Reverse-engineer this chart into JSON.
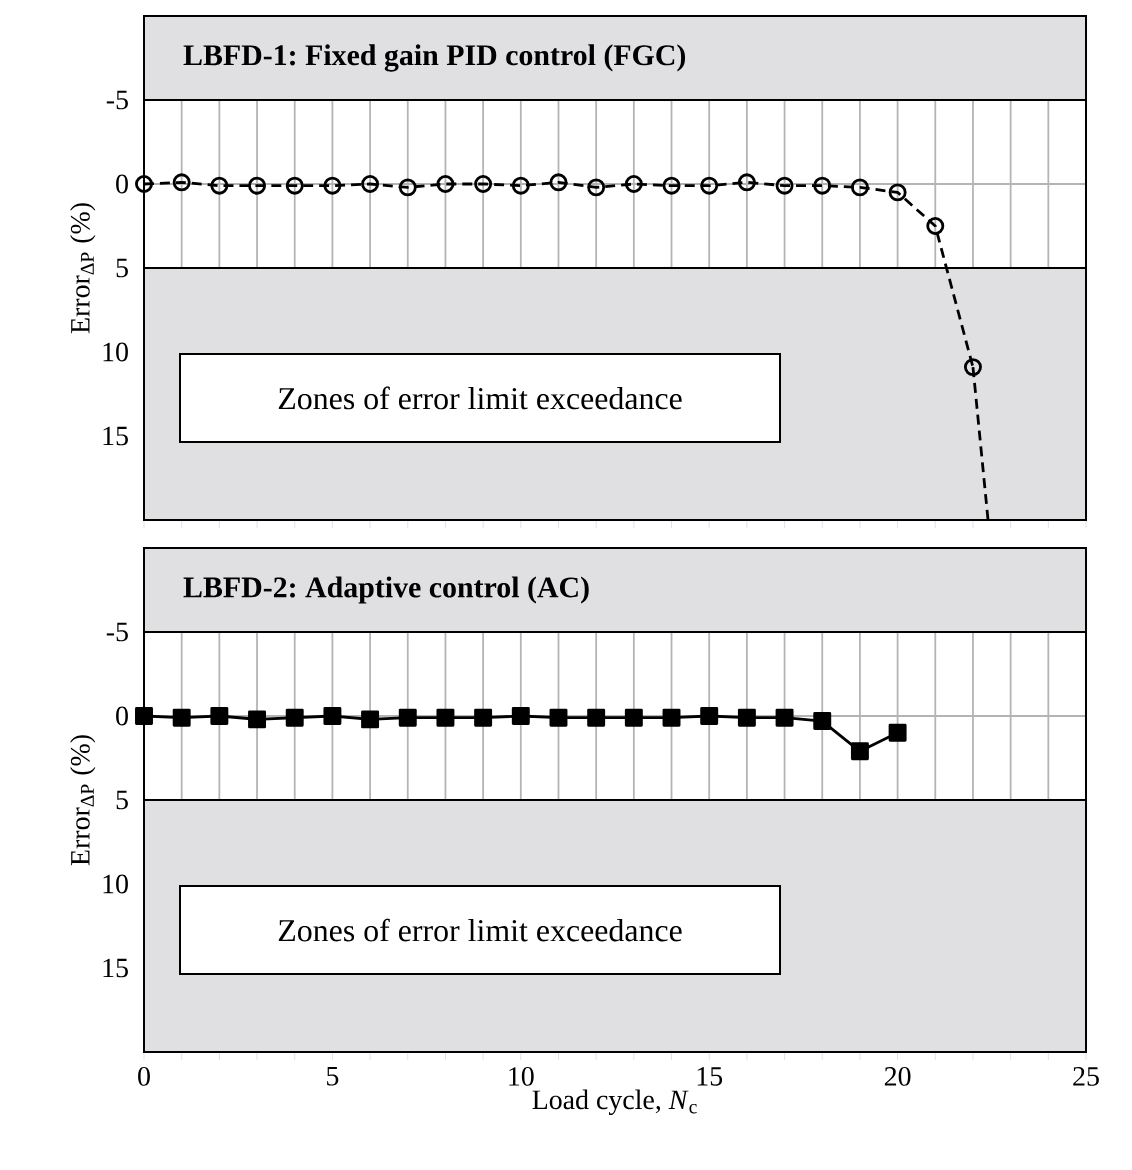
{
  "chart_data": [
    {
      "type": "line",
      "title": "LBFD-1: Fixed gain PID control (FGC)",
      "ylabel": "Error$_{ΔP}$ (%)",
      "x": [
        0,
        1,
        2,
        3,
        4,
        5,
        6,
        7,
        8,
        9,
        10,
        11,
        12,
        13,
        14,
        15,
        16,
        17,
        18,
        19,
        20,
        21,
        22
      ],
      "series": [
        {
          "color": "#000000",
          "marker": "circle",
          "line_style": "dashed",
          "values": [
            0,
            -0.1,
            0.1,
            0.1,
            0.1,
            0.1,
            0,
            0.2,
            0,
            0,
            0.1,
            -0.1,
            0.2,
            0,
            0.1,
            0.1,
            -0.1,
            0.1,
            0.1,
            0.2,
            0.5,
            2.5,
            10.9
          ]
        },
        {
          "color": "#000000",
          "marker": "none",
          "line_style": "dashed",
          "x": [
            22,
            22.4
          ],
          "values": [
            10.9,
            20
          ]
        }
      ],
      "xlim": [
        0,
        25
      ],
      "xticks": [
        0,
        {
          "value": 1,
          "label": null
        },
        {
          "value": 2,
          "label": null
        },
        {
          "value": 3,
          "label": null
        },
        {
          "value": 4,
          "label": null
        },
        5,
        {
          "value": 6,
          "label": null
        },
        {
          "value": 7,
          "label": null
        },
        {
          "value": 8,
          "label": null
        },
        {
          "value": 9,
          "label": null
        },
        10,
        {
          "value": 11,
          "label": null
        },
        {
          "value": 12,
          "label": null
        },
        {
          "value": 13,
          "label": null
        },
        {
          "value": 14,
          "label": null
        },
        15,
        {
          "value": 16,
          "label": null
        },
        {
          "value": 17,
          "label": null
        },
        {
          "value": 18,
          "label": null
        },
        {
          "value": 19,
          "label": null
        },
        20,
        {
          "value": 21,
          "label": null
        },
        {
          "value": 22,
          "label": null
        },
        {
          "value": 23,
          "label": null
        },
        {
          "value": 24,
          "label": null
        },
        25
      ],
      "ylim": [
        20,
        -10
      ],
      "yticks": [
        -5,
        0,
        5,
        10,
        15
      ],
      "grid": true,
      "tick_labels": "y",
      "bands": [
        {
          "axis": "y",
          "from": -10,
          "to": -5,
          "color": "#e0e0e2"
        },
        {
          "axis": "y",
          "from": 5,
          "to": 20,
          "color": "#e0e0e2",
          "label": "Zones of error limit exceedance"
        }
      ]
    },
    {
      "type": "line",
      "title": "LBFD-2: Adaptive control (AC)",
      "ylabel": "Error$_{ΔP}$ (%)",
      "xlabel": "Load cycle, *N*$_{c}$",
      "x": [
        0,
        1,
        2,
        3,
        4,
        5,
        6,
        7,
        8,
        9,
        10,
        11,
        12,
        13,
        14,
        15,
        16,
        17,
        18,
        19,
        20
      ],
      "series": [
        {
          "color": "#000000",
          "marker": "square",
          "line_style": "solid",
          "values": [
            0,
            0.1,
            0,
            0.2,
            0.1,
            0,
            0.2,
            0.1,
            0.1,
            0.1,
            0,
            0.1,
            0.1,
            0.1,
            0.1,
            0,
            0.1,
            0.1,
            0.3,
            2.1,
            1.0
          ]
        }
      ],
      "xlim": [
        0,
        25
      ],
      "xticks": [
        0,
        {
          "value": 1,
          "label": null
        },
        {
          "value": 2,
          "label": null
        },
        {
          "value": 3,
          "label": null
        },
        {
          "value": 4,
          "label": null
        },
        5,
        {
          "value": 6,
          "label": null
        },
        {
          "value": 7,
          "label": null
        },
        {
          "value": 8,
          "label": null
        },
        {
          "value": 9,
          "label": null
        },
        10,
        {
          "value": 11,
          "label": null
        },
        {
          "value": 12,
          "label": null
        },
        {
          "value": 13,
          "label": null
        },
        {
          "value": 14,
          "label": null
        },
        15,
        {
          "value": 16,
          "label": null
        },
        {
          "value": 17,
          "label": null
        },
        {
          "value": 18,
          "label": null
        },
        {
          "value": 19,
          "label": null
        },
        20,
        {
          "value": 21,
          "label": null
        },
        {
          "value": 22,
          "label": null
        },
        {
          "value": 23,
          "label": null
        },
        {
          "value": 24,
          "label": null
        },
        25
      ],
      "ylim": [
        20,
        -10
      ],
      "yticks": [
        -5,
        0,
        5,
        10,
        15
      ],
      "grid": true,
      "bands": [
        {
          "axis": "y",
          "from": -10,
          "to": -5,
          "color": "#e0e0e2"
        },
        {
          "axis": "y",
          "from": 5,
          "to": 20,
          "color": "#e0e0e2",
          "label": "Zones of error limit exceedance"
        }
      ]
    }
  ]
}
